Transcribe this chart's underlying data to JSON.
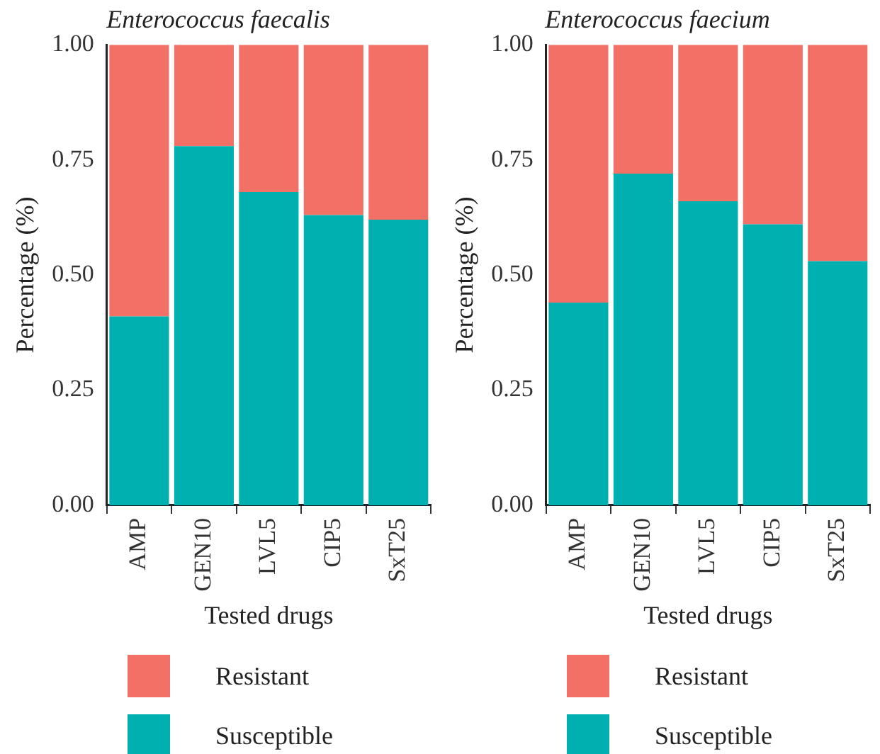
{
  "chart_data": [
    {
      "type": "bar",
      "title": "Enterococcus faecalis",
      "xlabel": "Tested drugs",
      "ylabel": "Percentage (%)",
      "categories": [
        "AMP",
        "GEN10",
        "LVL5",
        "CIP5",
        "SxT25"
      ],
      "stacked": true,
      "ylim": [
        0,
        1
      ],
      "yticks": [
        {
          "value": 0,
          "label": "0.00"
        },
        {
          "value": 0.25,
          "label": "0.25"
        },
        {
          "value": 0.5,
          "label": "0.50"
        },
        {
          "value": 0.75,
          "label": "0.75"
        },
        {
          "value": 1,
          "label": "1.00"
        }
      ],
      "grid": false,
      "legend": "bottom",
      "series": [
        {
          "name": "Susceptible",
          "color": "#00afaf",
          "values": [
            0.41,
            0.78,
            0.68,
            0.63,
            0.62
          ]
        },
        {
          "name": "Resistant",
          "color": "#f37067",
          "values": [
            0.59,
            0.22,
            0.32,
            0.37,
            0.38
          ]
        }
      ]
    },
    {
      "type": "bar",
      "title": "Enterococcus faecium",
      "xlabel": "Tested drugs",
      "ylabel": "Percentage (%)",
      "categories": [
        "AMP",
        "GEN10",
        "LVL5",
        "CIP5",
        "SxT25"
      ],
      "stacked": true,
      "ylim": [
        0,
        1
      ],
      "yticks": [
        {
          "value": 0,
          "label": "0.00"
        },
        {
          "value": 0.25,
          "label": "0.25"
        },
        {
          "value": 0.5,
          "label": "0.50"
        },
        {
          "value": 0.75,
          "label": "0.75"
        },
        {
          "value": 1,
          "label": "1.00"
        }
      ],
      "grid": false,
      "legend": "bottom",
      "series": [
        {
          "name": "Susceptible",
          "color": "#00afaf",
          "values": [
            0.44,
            0.72,
            0.66,
            0.61,
            0.53
          ]
        },
        {
          "name": "Resistant",
          "color": "#f37067",
          "values": [
            0.56,
            0.28,
            0.34,
            0.39,
            0.47
          ]
        }
      ]
    }
  ]
}
